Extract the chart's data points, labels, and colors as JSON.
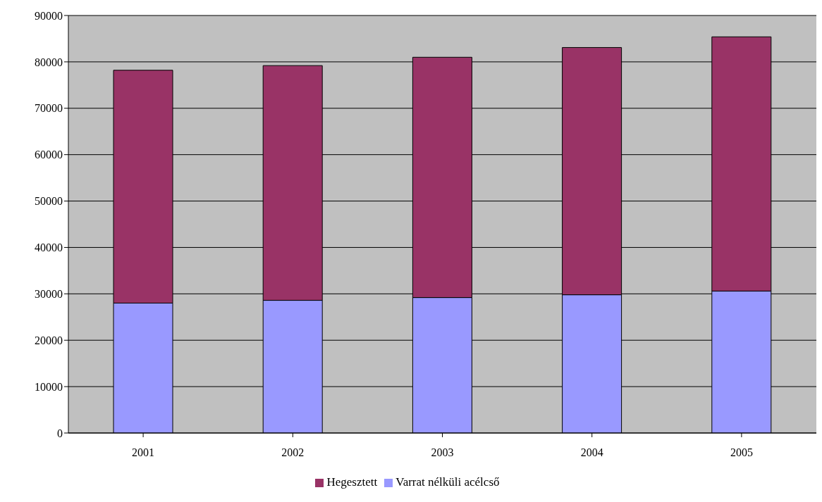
{
  "chart_data": {
    "type": "bar",
    "stacked": true,
    "categories": [
      "2001",
      "2002",
      "2003",
      "2004",
      "2005"
    ],
    "series": [
      {
        "name": "Varrat nélküli acélcső",
        "color": "#9999ff",
        "values": [
          28000,
          28600,
          29200,
          29800,
          30600
        ]
      },
      {
        "name": "Hegesztett",
        "color": "#993366",
        "values": [
          50200,
          50600,
          51800,
          53300,
          54800
        ]
      }
    ],
    "ylim": [
      0,
      90000
    ],
    "yticks": [
      0,
      10000,
      20000,
      30000,
      40000,
      50000,
      60000,
      70000,
      80000,
      90000
    ],
    "grid": "y",
    "legend": "bottom"
  }
}
